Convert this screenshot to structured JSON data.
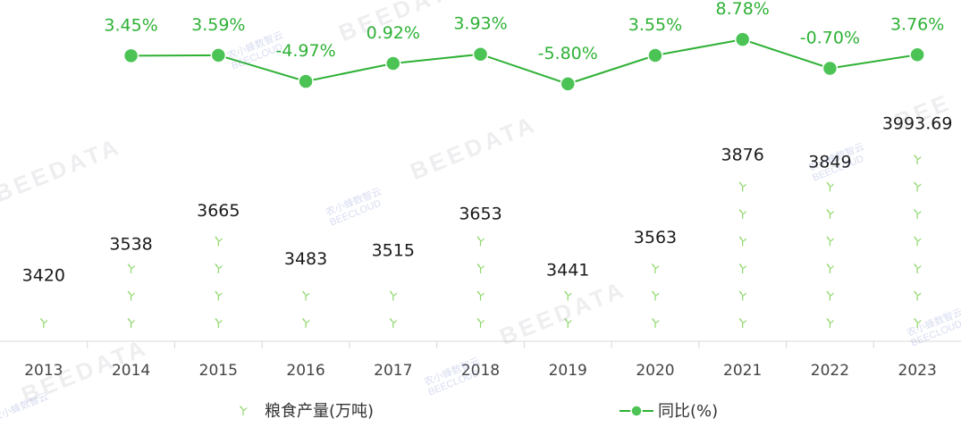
{
  "chart_data": {
    "type": "bar+line",
    "categories": [
      "2013",
      "2014",
      "2015",
      "2016",
      "2017",
      "2018",
      "2019",
      "2020",
      "2021",
      "2022",
      "2023"
    ],
    "series": [
      {
        "name": "粮食产量(万吨)",
        "type": "pictorial-bar",
        "values": [
          3420,
          3538,
          3665,
          3483,
          3515,
          3653,
          3441,
          3563,
          3876,
          3849,
          3993.69
        ],
        "labels": [
          "3420",
          "3538",
          "3665",
          "3483",
          "3515",
          "3653",
          "3441",
          "3563",
          "3876",
          "3849",
          "3993.69"
        ],
        "color": "#7ed957"
      },
      {
        "name": "同比(%)",
        "type": "line",
        "values": [
          null,
          3.45,
          3.59,
          -4.97,
          0.92,
          3.93,
          -5.8,
          3.55,
          8.78,
          -0.7,
          3.76
        ],
        "labels": [
          "",
          "3.45%",
          "3.59%",
          "-4.97%",
          "0.92%",
          "3.93%",
          "-5.80%",
          "3.55%",
          "8.78%",
          "-0.70%",
          "3.76%"
        ],
        "color": "#2eb135"
      }
    ],
    "grid": false,
    "legend_position": "bottom"
  },
  "watermarks": [
    "BEEDATA",
    "农小蜂数智云",
    "BEECLOUD"
  ]
}
